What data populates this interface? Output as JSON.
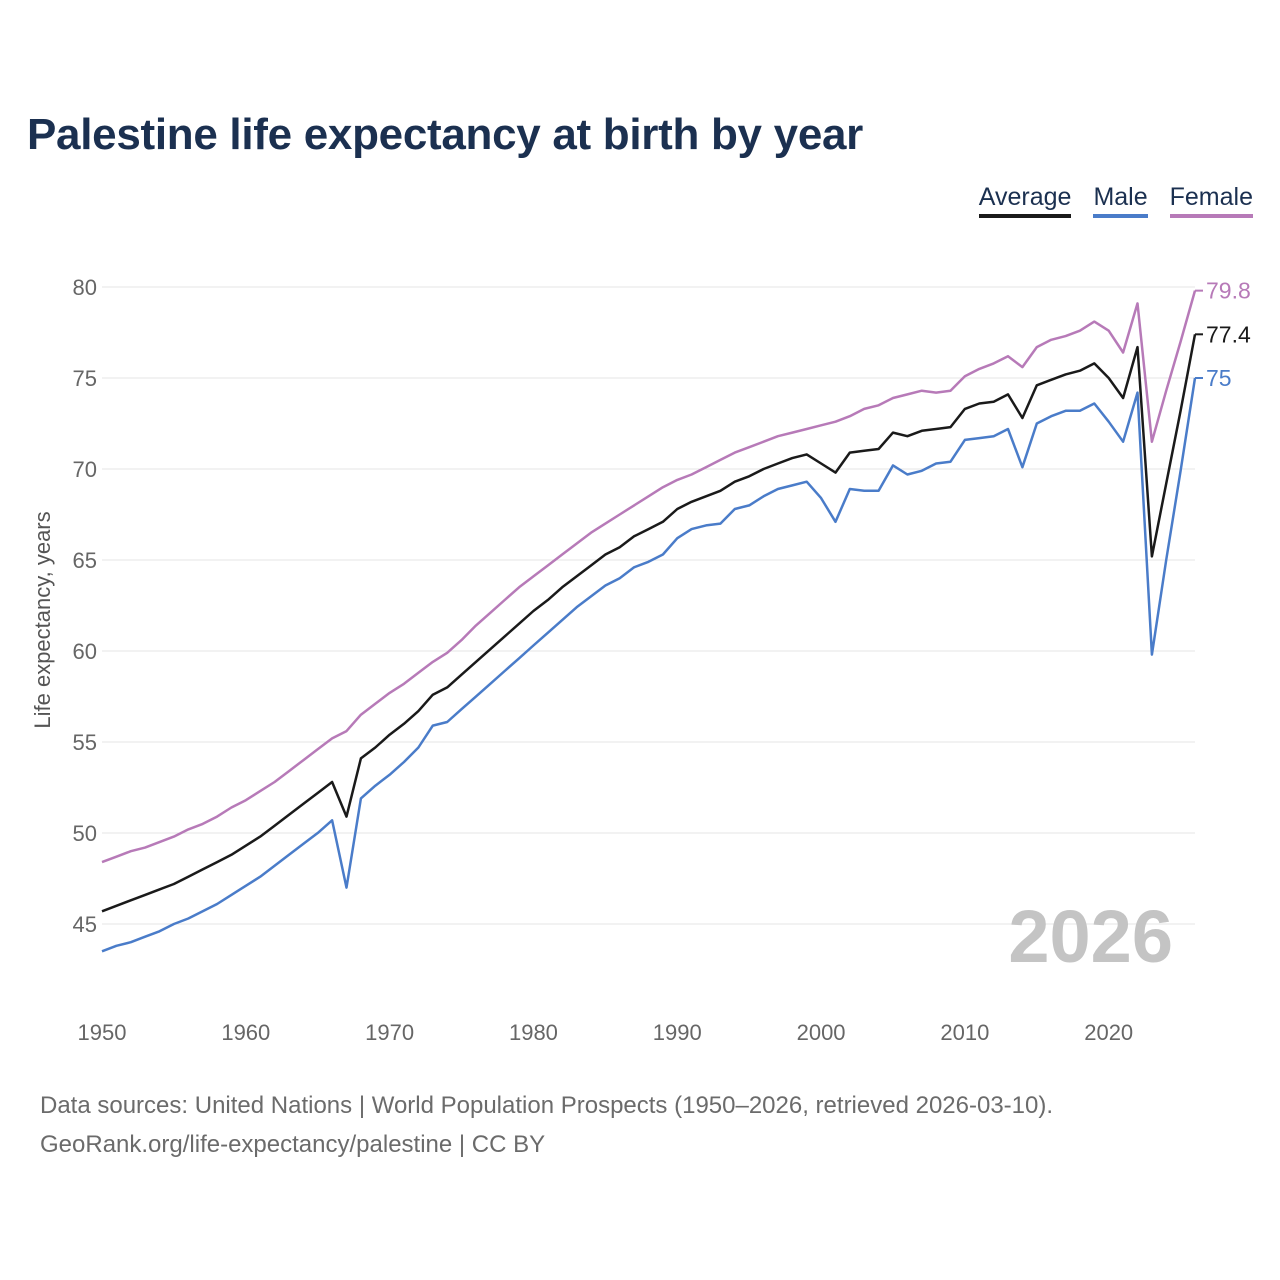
{
  "title": "Palestine life expectancy at birth by year",
  "legend": [
    {
      "name": "Average",
      "color": "#1a1a1a"
    },
    {
      "name": "Male",
      "color": "#4a7cc9"
    },
    {
      "name": "Female",
      "color": "#b77ab8"
    }
  ],
  "watermark_year": "2026",
  "footer": {
    "line1": "Data sources: United Nations | World Population Prospects (1950–2026, retrieved 2026-03-10).",
    "line2": "GeoRank.org/life-expectancy/palestine | CC BY"
  },
  "chart_data": {
    "type": "line",
    "title": "Palestine life expectancy at birth by year",
    "xlabel": "",
    "ylabel": "Life expectancy, years",
    "xlim": [
      1950,
      2026
    ],
    "ylim": [
      45,
      80
    ],
    "x_ticks": [
      "1950",
      "1960",
      "1970",
      "1980",
      "1990",
      "2000",
      "2010",
      "2020"
    ],
    "y_ticks": [
      "45",
      "50",
      "55",
      "60",
      "65",
      "70",
      "75",
      "80"
    ],
    "grid": true,
    "legend_position": "top-right",
    "x_start": 1950,
    "series": [
      {
        "name": "Average",
        "color": "#1a1a1a",
        "end_label": "77.4",
        "values": [
          45.7,
          46.0,
          46.3,
          46.6,
          46.9,
          47.2,
          47.6,
          48.0,
          48.4,
          48.8,
          49.3,
          49.8,
          50.4,
          51.0,
          51.6,
          52.2,
          52.8,
          50.9,
          54.1,
          54.7,
          55.4,
          56.0,
          56.7,
          57.6,
          58.0,
          58.7,
          59.4,
          60.1,
          60.8,
          61.5,
          62.2,
          62.8,
          63.5,
          64.1,
          64.7,
          65.3,
          65.7,
          66.3,
          66.7,
          67.1,
          67.8,
          68.2,
          68.5,
          68.8,
          69.3,
          69.6,
          70.0,
          70.3,
          70.6,
          70.8,
          70.3,
          69.8,
          70.9,
          71.0,
          71.1,
          72.0,
          71.8,
          72.1,
          72.2,
          72.3,
          73.3,
          73.6,
          73.7,
          74.1,
          72.8,
          74.6,
          74.9,
          75.2,
          75.4,
          75.8,
          75.0,
          73.9,
          76.7,
          65.2,
          69.2,
          73.2,
          77.4
        ]
      },
      {
        "name": "Male",
        "color": "#4a7cc9",
        "end_label": "75",
        "values": [
          43.5,
          43.8,
          44.0,
          44.3,
          44.6,
          45.0,
          45.3,
          45.7,
          46.1,
          46.6,
          47.1,
          47.6,
          48.2,
          48.8,
          49.4,
          50.0,
          50.7,
          47.0,
          51.9,
          52.6,
          53.2,
          53.9,
          54.7,
          55.9,
          56.1,
          56.8,
          57.5,
          58.2,
          58.9,
          59.6,
          60.3,
          61.0,
          61.7,
          62.4,
          63.0,
          63.6,
          64.0,
          64.6,
          64.9,
          65.3,
          66.2,
          66.7,
          66.9,
          67.0,
          67.8,
          68.0,
          68.5,
          68.9,
          69.1,
          69.3,
          68.4,
          67.1,
          68.9,
          68.8,
          68.8,
          70.2,
          69.7,
          69.9,
          70.3,
          70.4,
          71.6,
          71.7,
          71.8,
          72.2,
          70.1,
          72.5,
          72.9,
          73.2,
          73.2,
          73.6,
          72.6,
          71.5,
          74.2,
          59.8,
          65.0,
          69.9,
          75.0
        ]
      },
      {
        "name": "Female",
        "color": "#b77ab8",
        "end_label": "79.8",
        "values": [
          48.4,
          48.7,
          49.0,
          49.2,
          49.5,
          49.8,
          50.2,
          50.5,
          50.9,
          51.4,
          51.8,
          52.3,
          52.8,
          53.4,
          54.0,
          54.6,
          55.2,
          55.6,
          56.5,
          57.1,
          57.7,
          58.2,
          58.8,
          59.4,
          59.9,
          60.6,
          61.4,
          62.1,
          62.8,
          63.5,
          64.1,
          64.7,
          65.3,
          65.9,
          66.5,
          67.0,
          67.5,
          68.0,
          68.5,
          69.0,
          69.4,
          69.7,
          70.1,
          70.5,
          70.9,
          71.2,
          71.5,
          71.8,
          72.0,
          72.2,
          72.4,
          72.6,
          72.9,
          73.3,
          73.5,
          73.9,
          74.1,
          74.3,
          74.2,
          74.3,
          75.1,
          75.5,
          75.8,
          76.2,
          75.6,
          76.7,
          77.1,
          77.3,
          77.6,
          78.1,
          77.6,
          76.4,
          79.1,
          71.5,
          74.3,
          77.0,
          79.8
        ]
      }
    ]
  }
}
